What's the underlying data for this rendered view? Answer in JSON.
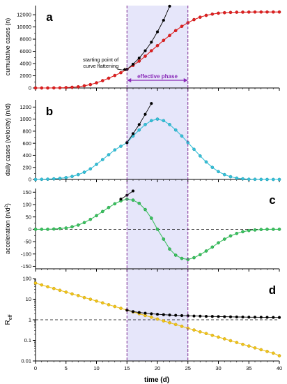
{
  "figure": {
    "shared_xlabel": "time (d)",
    "x_ticks": [
      0,
      5,
      10,
      15,
      20,
      25,
      30,
      35,
      40
    ],
    "effective_phase": {
      "start": 15,
      "end": 25,
      "label": "effective phase"
    },
    "colors": {
      "shade": "#e6e6fa",
      "phase_line": "#7d2a92",
      "arrow": "#8a2ab8",
      "panel_a": "#e02020",
      "panel_b": "#36c0d8",
      "panel_c": "#3cc060",
      "panel_d": "#f0c419",
      "extrapolation": "#000000"
    }
  },
  "chart_data": [
    {
      "panel": "a",
      "type": "line",
      "ylabel": "cumulative cases (n)",
      "xlim": [
        0,
        40
      ],
      "ylim": [
        0,
        13500
      ],
      "y_ticks": [
        0,
        2000,
        4000,
        6000,
        8000,
        10000,
        12000
      ],
      "annotation": {
        "lines": [
          "starting point of",
          "curve flattening"
        ],
        "x": 15,
        "y": 2650
      },
      "series": [
        {
          "role": "model",
          "x": [
            0,
            1,
            2,
            3,
            4,
            5,
            6,
            7,
            8,
            9,
            10,
            11,
            12,
            13,
            14,
            15,
            16,
            17,
            18,
            19,
            20,
            21,
            22,
            23,
            24,
            25,
            26,
            27,
            28,
            29,
            30,
            31,
            32,
            33,
            34,
            35,
            36,
            37,
            38,
            39,
            40
          ],
          "y": [
            0,
            2,
            5,
            12,
            27,
            55,
            110,
            200,
            350,
            560,
            850,
            1200,
            1600,
            2050,
            2500,
            3050,
            3700,
            4400,
            5200,
            6100,
            6950,
            7800,
            8600,
            9400,
            10100,
            10700,
            11200,
            11600,
            11900,
            12100,
            12250,
            12330,
            12380,
            12410,
            12430,
            12440,
            12445,
            12448,
            12450,
            12450,
            12450
          ]
        },
        {
          "role": "extrapolation",
          "x": [
            15,
            16,
            17,
            18,
            19,
            20,
            21,
            22
          ],
          "y": [
            3050,
            3900,
            4900,
            6100,
            7500,
            9200,
            11100,
            13400
          ]
        }
      ]
    },
    {
      "panel": "b",
      "type": "line",
      "ylabel": "daily cases (velocity)  (n/d)",
      "xlim": [
        0,
        40
      ],
      "ylim": [
        0,
        1320
      ],
      "y_ticks": [
        0,
        200,
        400,
        600,
        800,
        1000,
        1200
      ],
      "series": [
        {
          "role": "model",
          "x": [
            0,
            1,
            2,
            3,
            4,
            5,
            6,
            7,
            8,
            9,
            10,
            11,
            12,
            13,
            14,
            15,
            16,
            17,
            18,
            19,
            20,
            21,
            22,
            23,
            24,
            25,
            26,
            27,
            28,
            29,
            30,
            31,
            32,
            33,
            34,
            35,
            36,
            37,
            38,
            39,
            40
          ],
          "y": [
            0,
            2,
            5,
            10,
            18,
            30,
            50,
            80,
            120,
            175,
            250,
            330,
            410,
            490,
            550,
            610,
            720,
            820,
            910,
            975,
            1000,
            975,
            910,
            820,
            720,
            610,
            500,
            390,
            290,
            200,
            130,
            80,
            45,
            22,
            10,
            4,
            2,
            1,
            0,
            0,
            0
          ]
        },
        {
          "role": "extrapolation",
          "x": [
            15,
            16,
            17,
            18,
            19
          ],
          "y": [
            610,
            760,
            910,
            1080,
            1260
          ]
        }
      ]
    },
    {
      "panel": "c",
      "type": "line",
      "ylabel": "acceleration (n/d²)",
      "ylabel_main": "acceleration (n/d",
      "ylabel_sup": "2",
      "ylabel_end": ")",
      "xlim": [
        0,
        40
      ],
      "ylim": [
        -160,
        165
      ],
      "y_ticks": [
        -150,
        -100,
        -50,
        0,
        50,
        100,
        150
      ],
      "zero_line": 0,
      "series": [
        {
          "role": "model",
          "x": [
            0,
            1,
            2,
            3,
            4,
            5,
            6,
            7,
            8,
            9,
            10,
            11,
            12,
            13,
            14,
            15,
            16,
            17,
            18,
            19,
            20,
            21,
            22,
            23,
            24,
            25,
            26,
            27,
            28,
            29,
            30,
            31,
            32,
            33,
            34,
            35,
            36,
            37,
            38,
            39,
            40
          ],
          "y": [
            0,
            0,
            0,
            1,
            3,
            5,
            10,
            17,
            27,
            40,
            55,
            72,
            88,
            103,
            115,
            122,
            118,
            105,
            80,
            45,
            0,
            -40,
            -80,
            -105,
            -118,
            -122,
            -115,
            -103,
            -88,
            -72,
            -55,
            -40,
            -27,
            -17,
            -10,
            -5,
            -3,
            -1,
            0,
            0,
            0
          ]
        },
        {
          "role": "extrapolation",
          "x": [
            14,
            15,
            16
          ],
          "y": [
            122,
            138,
            155
          ]
        }
      ]
    },
    {
      "panel": "d",
      "type": "line",
      "ylabel_main": "R",
      "ylabel_sub": "eff",
      "xlim": [
        0,
        40
      ],
      "yscale": "log",
      "ylim": [
        0.01,
        100
      ],
      "y_ticks": [
        0.01,
        0.1,
        1,
        10,
        100
      ],
      "y_tick_labels": [
        "0.01",
        "0.1",
        "1",
        "10",
        "100"
      ],
      "reference_line": 1,
      "series": [
        {
          "role": "model",
          "x": [
            0,
            1,
            2,
            3,
            4,
            5,
            6,
            7,
            8,
            9,
            10,
            11,
            12,
            13,
            14,
            15,
            16,
            17,
            18,
            19,
            20,
            21,
            22,
            23,
            24,
            25,
            26,
            27,
            28,
            29,
            30,
            31,
            32,
            33,
            34,
            35,
            36,
            37,
            38,
            39,
            40
          ],
          "y": [
            60,
            49,
            40,
            33,
            27,
            22,
            18,
            15,
            12,
            9.9,
            8.1,
            6.6,
            5.4,
            4.4,
            3.6,
            2.95,
            2.41,
            1.97,
            1.61,
            1.32,
            1.08,
            0.88,
            0.72,
            0.59,
            0.48,
            0.39,
            0.32,
            0.26,
            0.215,
            0.176,
            0.144,
            0.118,
            0.096,
            0.079,
            0.064,
            0.053,
            0.043,
            0.035,
            0.029,
            0.024,
            0.018
          ]
        },
        {
          "role": "extrapolation",
          "x": [
            15,
            16,
            17,
            18,
            19,
            20,
            21,
            22,
            23,
            24,
            25,
            26,
            27,
            28,
            29,
            30,
            31,
            32,
            33,
            34,
            35,
            36,
            37,
            38,
            39,
            40
          ],
          "y": [
            2.95,
            2.5,
            2.25,
            2.08,
            1.95,
            1.85,
            1.77,
            1.7,
            1.65,
            1.6,
            1.56,
            1.53,
            1.5,
            1.47,
            1.45,
            1.43,
            1.41,
            1.39,
            1.37,
            1.36,
            1.34,
            1.33,
            1.32,
            1.31,
            1.3,
            1.29
          ]
        }
      ]
    }
  ]
}
